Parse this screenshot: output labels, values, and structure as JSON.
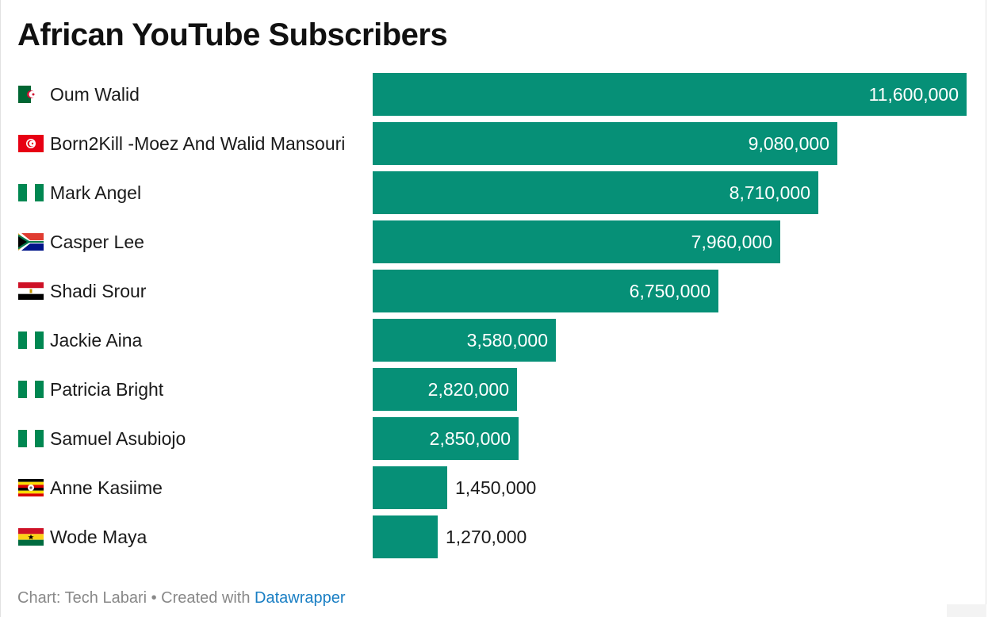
{
  "chart_data": {
    "type": "bar",
    "orientation": "horizontal",
    "title": "African YouTube Subscribers",
    "categories": [
      "Oum Walid",
      "Born2Kill -Moez And Walid Mansouri",
      "Mark Angel",
      "Casper Lee",
      "Shadi Srour",
      "Jackie Aina",
      "Patricia Bright",
      "Samuel Asubiojo",
      "Anne Kasiime",
      "Wode Maya"
    ],
    "values": [
      11600000,
      9080000,
      8710000,
      7960000,
      6750000,
      3580000,
      2820000,
      2850000,
      1450000,
      1270000
    ],
    "value_labels": [
      "11,600,000",
      "9,080,000",
      "8,710,000",
      "7,960,000",
      "6,750,000",
      "3,580,000",
      "2,820,000",
      "2,850,000",
      "1,450,000",
      "1,270,000"
    ],
    "flags": [
      "algeria",
      "tunisia",
      "nigeria",
      "south-africa",
      "egypt",
      "nigeria",
      "nigeria",
      "nigeria",
      "uganda",
      "ghana"
    ],
    "xlim": [
      0,
      11600000
    ],
    "bar_color": "#069077",
    "grid": false,
    "legend": false
  },
  "footer": {
    "source_text": "Chart: Tech Labari • Created with ",
    "link_text": "Datawrapper"
  },
  "colors": {
    "link": "#1a7fc4",
    "footer_text": "#888888"
  }
}
